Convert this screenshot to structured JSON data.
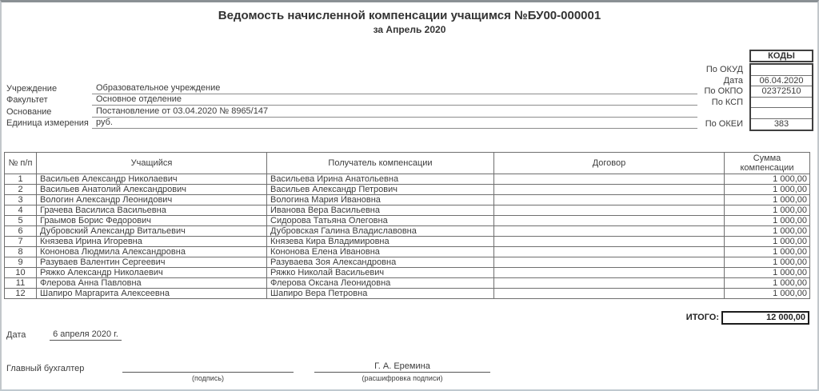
{
  "page": {
    "title": "Ведомость начисленной компенсации учащимся №БУ00-000001",
    "subtitle": "за Апрель 2020"
  },
  "codes": {
    "header": "КОДЫ",
    "rows": [
      {
        "label": "По ОКУД",
        "value": ""
      },
      {
        "label": "Дата",
        "value": "06.04.2020"
      },
      {
        "label": "По ОКПО",
        "value": "02372510"
      },
      {
        "label": "По КСП",
        "value": ""
      },
      {
        "label": "",
        "value": ""
      },
      {
        "label": "По ОКЕИ",
        "value": "383"
      }
    ]
  },
  "fields": [
    {
      "label": "Учреждение",
      "value": "Образовательное учреждение"
    },
    {
      "label": "Факультет",
      "value": "Основное отделение"
    },
    {
      "label": "Основание",
      "value": "Постановление от 03.04.2020 № 8965/147"
    },
    {
      "label": "Единица измерения",
      "value": "руб."
    }
  ],
  "table": {
    "headers": [
      "№ п/п",
      "Учащийся",
      "Получатель компенсации",
      "Договор",
      "Сумма компенсации"
    ],
    "rows": [
      {
        "num": "1",
        "student": "Васильев Александр Николаевич",
        "recipient": "Васильева Ирина Анатольевна",
        "contract": "",
        "amount": "1 000,00"
      },
      {
        "num": "2",
        "student": "Васильев Анатолий Александрович",
        "recipient": "Васильев Александр Петрович",
        "contract": "",
        "amount": "1 000,00"
      },
      {
        "num": "3",
        "student": "Вологин Александр Леонидович",
        "recipient": "Вологина Мария Ивановна",
        "contract": "",
        "amount": "1 000,00"
      },
      {
        "num": "4",
        "student": "Грачева Василиса Васильевна",
        "recipient": "Иванова Вера Васильевна",
        "contract": "",
        "amount": "1 000,00"
      },
      {
        "num": "5",
        "student": "Граымов Борис Федорович",
        "recipient": "Сидорова Татьяна Олеговна",
        "contract": "",
        "amount": "1 000,00"
      },
      {
        "num": "6",
        "student": "Дубровский Александр Витальевич",
        "recipient": "Дубровская Галина Владиславовна",
        "contract": "",
        "amount": "1 000,00"
      },
      {
        "num": "7",
        "student": "Князева Ирина Игоревна",
        "recipient": "Князева Кира Владимировна",
        "contract": "",
        "amount": "1 000,00"
      },
      {
        "num": "8",
        "student": "Кононова Людмила Александровна",
        "recipient": "Кононова Елена Ивановна",
        "contract": "",
        "amount": "1 000,00"
      },
      {
        "num": "9",
        "student": "Разуваев Валентин Сергеевич",
        "recipient": "Разуваева Зоя Александровна",
        "contract": "",
        "amount": "1 000,00"
      },
      {
        "num": "10",
        "student": "Ряжко Александр Николаевич",
        "recipient": "Ряжко Николай Васильевич",
        "contract": "",
        "amount": "1 000,00"
      },
      {
        "num": "11",
        "student": "Флерова Анна Павловна",
        "recipient": "Флерова Оксана Леонидовна",
        "contract": "",
        "amount": "1 000,00"
      },
      {
        "num": "12",
        "student": "Шапиро Маргарита Алексеевна",
        "recipient": "Шапиро Вера Петровна",
        "contract": "",
        "amount": "1 000,00"
      }
    ],
    "total_label": "ИТОГО:",
    "total_value": "12 000,00"
  },
  "footer": {
    "date_label": "Дата",
    "date_value": "6 апреля 2020 г.",
    "accountant_label": "Главный бухгалтер",
    "signature_caption": "(подпись)",
    "signature_name": "Г. А. Еремина",
    "signature_name_caption": "(расшифровка подписи)"
  }
}
